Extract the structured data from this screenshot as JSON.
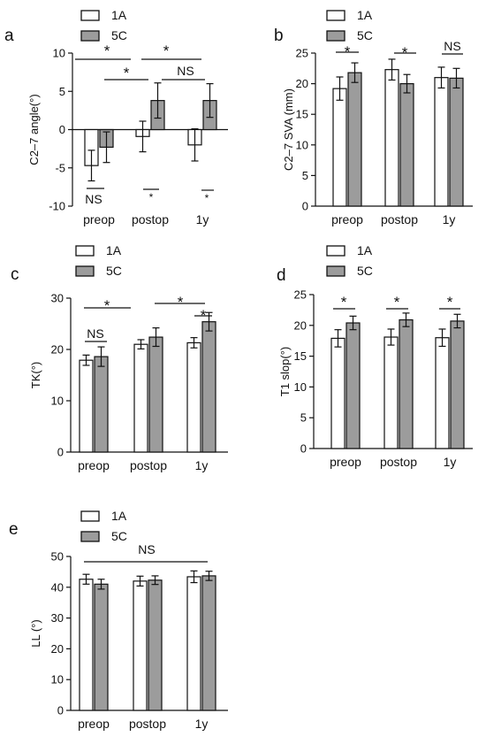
{
  "legend": {
    "labels": [
      "1A",
      "5C"
    ]
  },
  "colors": {
    "group1": "#ffffff",
    "group2": "#9c9c9c",
    "line": "#111111"
  },
  "chart_data": [
    {
      "panel": "a",
      "type": "bar",
      "categories": [
        "preop",
        "postop",
        "1y"
      ],
      "series": [
        {
          "name": "1A",
          "values": [
            -4.7,
            -0.9,
            -2.0
          ],
          "errors": [
            2.0,
            2.0,
            2.1
          ]
        },
        {
          "name": "5C",
          "values": [
            -2.3,
            3.8,
            3.8
          ],
          "errors": [
            2.0,
            2.3,
            2.2
          ]
        }
      ],
      "ylabel": "C2–7 angle(°)",
      "ylim": [
        -10,
        10
      ],
      "yticks": [
        -10,
        -5,
        0,
        5,
        10
      ],
      "annotations": [
        "*",
        "*",
        "*",
        "NS",
        "NS",
        "*",
        "*"
      ]
    },
    {
      "panel": "b",
      "type": "bar",
      "categories": [
        "preop",
        "postop",
        "1y"
      ],
      "series": [
        {
          "name": "1A",
          "values": [
            19.2,
            22.3,
            21.0
          ],
          "errors": [
            1.9,
            1.7,
            1.7
          ]
        },
        {
          "name": "5C",
          "values": [
            21.8,
            20.0,
            20.9
          ],
          "errors": [
            1.6,
            1.5,
            1.6
          ]
        }
      ],
      "ylabel": "C2–7 SVA (mm)",
      "ylim": [
        0,
        25
      ],
      "yticks": [
        0,
        5,
        10,
        15,
        20,
        25
      ],
      "annotations": [
        "*",
        "*",
        "NS"
      ]
    },
    {
      "panel": "c",
      "type": "bar",
      "categories": [
        "preop",
        "postop",
        "1y"
      ],
      "series": [
        {
          "name": "1A",
          "values": [
            17.9,
            21.0,
            21.3
          ],
          "errors": [
            1.0,
            0.9,
            1.0
          ]
        },
        {
          "name": "5C",
          "values": [
            18.6,
            22.4,
            25.4
          ],
          "errors": [
            1.9,
            1.8,
            1.8
          ]
        }
      ],
      "ylabel": "TK(°)",
      "ylim": [
        0,
        30
      ],
      "yticks": [
        0,
        10,
        20,
        30
      ],
      "annotations": [
        "NS",
        "*",
        "*",
        "*"
      ]
    },
    {
      "panel": "d",
      "type": "bar",
      "categories": [
        "preop",
        "postop",
        "1y"
      ],
      "series": [
        {
          "name": "1A",
          "values": [
            17.9,
            18.1,
            18.0
          ],
          "errors": [
            1.4,
            1.3,
            1.4
          ]
        },
        {
          "name": "5C",
          "values": [
            20.4,
            20.9,
            20.7
          ],
          "errors": [
            1.1,
            1.1,
            1.1
          ]
        }
      ],
      "ylabel": "T1 slop(°)",
      "ylim": [
        0,
        25
      ],
      "yticks": [
        0,
        5,
        10,
        15,
        20,
        25
      ],
      "annotations": [
        "*",
        "*",
        "*"
      ]
    },
    {
      "panel": "e",
      "type": "bar",
      "categories": [
        "preop",
        "postop",
        "1y"
      ],
      "series": [
        {
          "name": "1A",
          "values": [
            42.6,
            42.0,
            43.4
          ],
          "errors": [
            1.6,
            1.6,
            1.9
          ]
        },
        {
          "name": "5C",
          "values": [
            41.0,
            42.3,
            43.7
          ],
          "errors": [
            1.6,
            1.4,
            1.5
          ]
        }
      ],
      "ylabel": "LL (°)",
      "ylim": [
        0,
        50
      ],
      "yticks": [
        0,
        10,
        20,
        30,
        40,
        50
      ],
      "annotations": [
        "NS"
      ]
    }
  ]
}
